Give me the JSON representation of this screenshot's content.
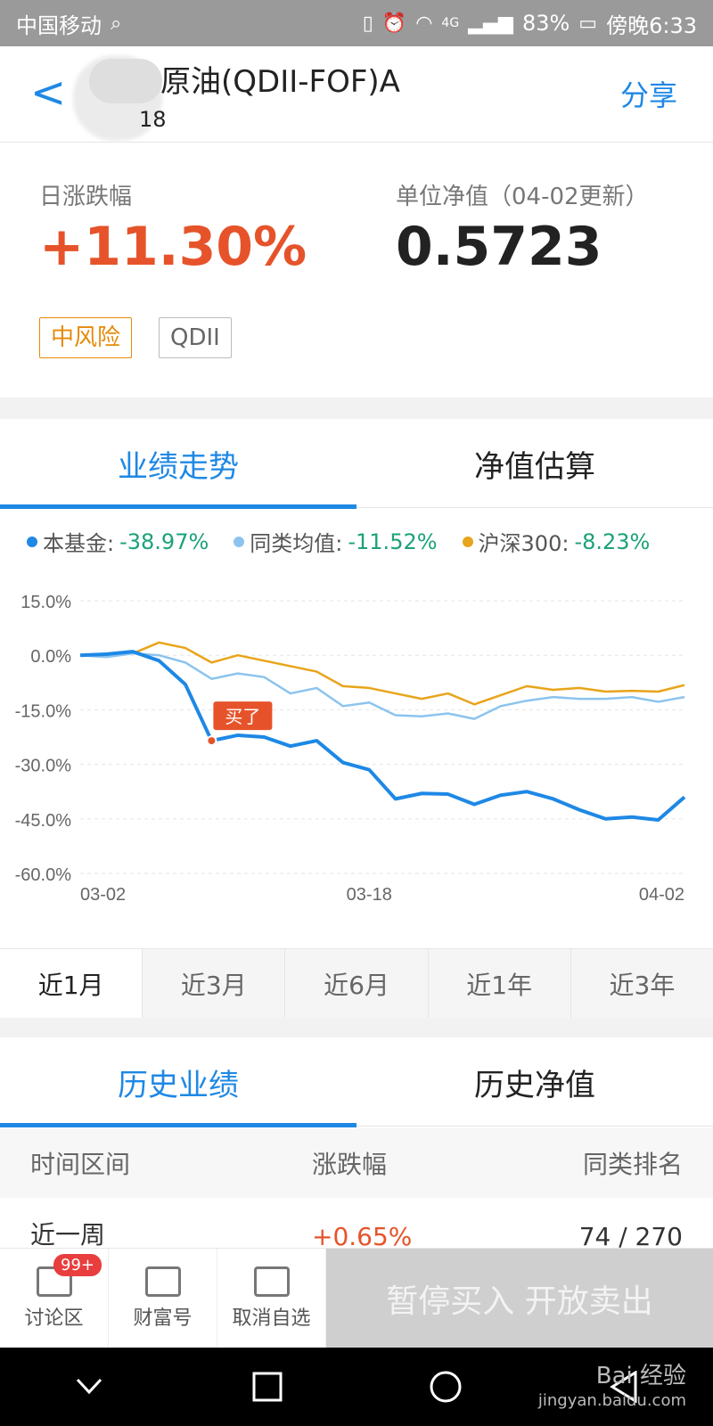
{
  "status_bar": {
    "carrier": "中国移动",
    "battery": "83%",
    "network": "4G",
    "time": "傍晚6:33"
  },
  "header": {
    "back_icon": "chevron-left-icon",
    "title": "原油(QDII-FOF)A",
    "code_suffix": "18",
    "share_label": "分享"
  },
  "summary": {
    "daily_change_label": "日涨跌幅",
    "daily_change_value": "+11.30%",
    "nav_label": "单位净值（04-02更新）",
    "nav_value": "0.5723",
    "tags": [
      "中风险",
      "QDII"
    ]
  },
  "chart_tabs": [
    "业绩走势",
    "净值估算"
  ],
  "legend": [
    {
      "name": "本基金:",
      "value": "-38.97%",
      "color": "#1e88e5"
    },
    {
      "name": "同类均值:",
      "value": "-11.52%",
      "color": "#8cc4ee"
    },
    {
      "name": "沪深300:",
      "value": "-8.23%",
      "color": "#e8a41a"
    }
  ],
  "chart_data": {
    "type": "line",
    "y_ticks": [
      "15.0%",
      "0.0%",
      "-15.0%",
      "-30.0%",
      "-45.0%",
      "-60.0%"
    ],
    "ylim": [
      -60,
      15
    ],
    "x_tick_labels": [
      "03-02",
      "03-18",
      "04-02"
    ],
    "annotation": "买了",
    "annotation_index": 5,
    "series": [
      {
        "name": "本基金",
        "color": "#1e88e5",
        "values": [
          0,
          0.3,
          1,
          -1.5,
          -8,
          -23.5,
          -22,
          -22.5,
          -25,
          -23.5,
          -29.5,
          -31.5,
          -39.5,
          -38,
          -38.2,
          -41,
          -38.5,
          -37.5,
          -39.5,
          -42.5,
          -45,
          -44.5,
          -45.3,
          -39
        ]
      },
      {
        "name": "同类均值",
        "color": "#8cc4ee",
        "values": [
          0,
          -0.5,
          0.5,
          0,
          -2,
          -6.5,
          -5,
          -6,
          -10.5,
          -9,
          -14,
          -13,
          -16.5,
          -16.8,
          -16,
          -17.5,
          -14,
          -12.5,
          -11.5,
          -12,
          -12,
          -11.5,
          -12.8,
          -11.5
        ]
      },
      {
        "name": "沪深300",
        "color": "#e8a41a",
        "values": [
          0,
          0.3,
          0.5,
          3.5,
          2,
          -2,
          0,
          -1.5,
          -3,
          -4.5,
          -8.5,
          -9,
          -10.5,
          -12,
          -10.5,
          -13.5,
          -11,
          -8.5,
          -9.5,
          -9,
          -10,
          -9.8,
          -10,
          -8.2
        ]
      }
    ]
  },
  "ranges": [
    "近1月",
    "近3月",
    "近6月",
    "近1年",
    "近3年"
  ],
  "history_tabs": [
    "历史业绩",
    "历史净值"
  ],
  "history_table": {
    "headers": [
      "时间区间",
      "涨跌幅",
      "同类排名"
    ],
    "rows": [
      {
        "period": "近一周",
        "change": "+0.65%",
        "rank": "74 / 270"
      }
    ]
  },
  "bottom_bar": {
    "buttons": [
      "讨论区",
      "财富号",
      "取消自选"
    ],
    "badge": "99+",
    "trade_label": "暂停买入 开放卖出"
  },
  "nav_bar": [
    "chevron-down-icon",
    "square-icon",
    "circle-icon",
    "triangle-back-icon"
  ],
  "watermark": {
    "line1": "Bai 经验",
    "line2": "jingyan.baidu.com"
  }
}
